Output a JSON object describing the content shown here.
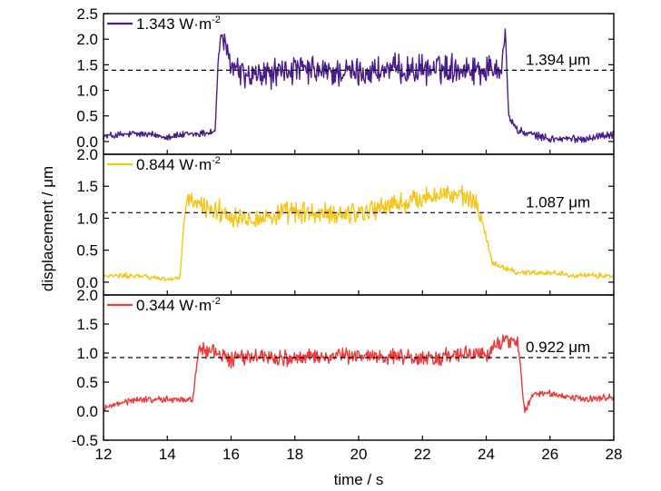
{
  "chart_data": {
    "type": "line",
    "xlabel": "time / s",
    "ylabel": "displacement / μm",
    "xlim": [
      12,
      28
    ],
    "x_ticks": [
      "12",
      "14",
      "16",
      "18",
      "20",
      "22",
      "24",
      "26",
      "28"
    ],
    "grid": false,
    "legend_placement": "top-left",
    "panels": [
      {
        "name": "1.343 W·m",
        "legend_label": "1.343 W·m",
        "legend_superscript": "-2",
        "color": "#4b1c8c",
        "ylim": [
          -0.25,
          2.5
        ],
        "y_ticks": [
          "2.5",
          "2.0",
          "1.5",
          "1.0",
          "0.5",
          "0.0"
        ],
        "reference_value": 1.394,
        "reference_label": "1.394 μm",
        "step_up_time": 15.6,
        "step_down_time": 24.6,
        "x": [
          12.0,
          13.0,
          14.0,
          15.0,
          15.5,
          15.6,
          15.7,
          15.8,
          16.0,
          16.5,
          17.0,
          18.0,
          19.0,
          20.0,
          21.0,
          22.0,
          23.0,
          24.0,
          24.5,
          24.6,
          24.7,
          25.0,
          26.0,
          27.0,
          28.0
        ],
        "values": [
          0.1,
          0.15,
          0.1,
          0.15,
          0.2,
          1.6,
          2.2,
          1.8,
          1.5,
          1.25,
          1.3,
          1.4,
          1.35,
          1.35,
          1.4,
          1.4,
          1.45,
          1.4,
          1.5,
          2.2,
          0.5,
          0.2,
          0.05,
          0.05,
          0.15
        ]
      },
      {
        "name": "0.844 W·m",
        "legend_label": "0.844 W·m",
        "legend_superscript": "-2",
        "color": "#f5c518",
        "ylim": [
          -0.2,
          2.0
        ],
        "y_ticks": [
          "2.0",
          "1.5",
          "1.0",
          "0.5",
          "0.0"
        ],
        "reference_value": 1.087,
        "reference_label": "1.087 μm",
        "step_up_time": 14.5,
        "step_down_time": 23.9,
        "x": [
          12.0,
          13.0,
          14.0,
          14.4,
          14.5,
          14.6,
          15.0,
          16.0,
          17.0,
          18.0,
          19.0,
          20.0,
          21.0,
          22.0,
          22.5,
          23.0,
          23.5,
          23.8,
          24.0,
          24.2,
          25.0,
          26.0,
          27.0,
          28.0
        ],
        "values": [
          0.1,
          0.1,
          0.05,
          0.05,
          0.8,
          1.3,
          1.2,
          1.05,
          1.0,
          1.1,
          1.05,
          1.1,
          1.2,
          1.3,
          1.4,
          1.35,
          1.3,
          1.1,
          0.7,
          0.3,
          0.15,
          0.15,
          0.1,
          0.1
        ]
      },
      {
        "name": "0.344 W·m",
        "legend_label": "0.344 W·m",
        "legend_superscript": "-2",
        "color": "#ee3a3a",
        "ylim": [
          -0.5,
          2.0
        ],
        "y_ticks": [
          "2.0",
          "1.5",
          "1.0",
          "0.5",
          "0.0",
          "-0.5"
        ],
        "reference_value": 0.922,
        "reference_label": "0.922 μm",
        "step_up_time": 14.9,
        "step_down_time": 25.1,
        "x": [
          12.0,
          13.0,
          14.0,
          14.8,
          14.9,
          15.0,
          15.5,
          16.0,
          17.0,
          18.0,
          19.0,
          20.0,
          21.0,
          22.0,
          23.0,
          24.0,
          24.5,
          25.0,
          25.1,
          25.2,
          25.5,
          26.0,
          27.0,
          28.0
        ],
        "values": [
          0.05,
          0.2,
          0.2,
          0.2,
          0.7,
          1.1,
          1.0,
          0.9,
          0.95,
          0.9,
          0.95,
          0.95,
          0.95,
          0.9,
          0.95,
          1.0,
          1.2,
          1.2,
          0.6,
          0.0,
          0.3,
          0.3,
          0.2,
          0.25
        ]
      }
    ]
  }
}
